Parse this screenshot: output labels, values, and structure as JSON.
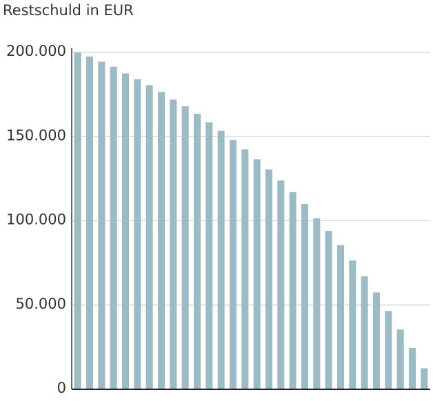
{
  "chart_data": {
    "type": "bar",
    "title": "Restschuld in EUR",
    "categories": [
      null,
      null,
      null,
      null,
      null,
      null,
      null,
      null,
      null,
      null,
      null,
      null,
      null,
      null,
      null,
      null,
      null,
      null,
      null,
      null,
      null,
      null,
      null,
      null,
      null,
      null,
      null,
      null,
      null,
      null
    ],
    "values": [
      200000,
      197500,
      194500,
      191500,
      187500,
      184000,
      180500,
      176500,
      172000,
      168000,
      163500,
      158500,
      153500,
      148000,
      142500,
      136500,
      130500,
      124000,
      117000,
      110000,
      101500,
      94000,
      85500,
      76500,
      67000,
      57500,
      46500,
      35500,
      24500,
      12500
    ],
    "color": "#9bbcc4",
    "ylim": [
      0,
      200000
    ],
    "yticks": [
      0,
      {
        "value": 50000,
        "label": "50.000"
      },
      {
        "value": 100000,
        "label": "100.000"
      },
      {
        "value": 150000,
        "label": "150.000"
      },
      {
        "value": 200000,
        "label": "200.000"
      }
    ],
    "grid": true
  }
}
